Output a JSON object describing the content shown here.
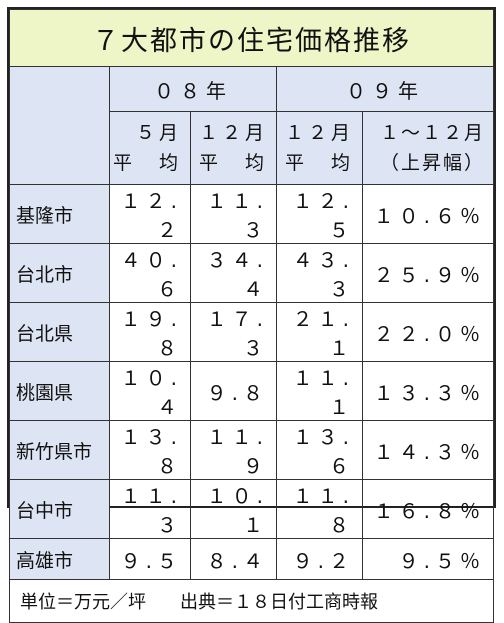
{
  "title": "７大都市の住宅価格推移",
  "year_headers": [
    "０８年",
    "０９年"
  ],
  "sub_headers": [
    {
      "line1": "５月",
      "line2": "平　均"
    },
    {
      "line1": "１２月",
      "line2": "平　均"
    },
    {
      "line1": "１２月",
      "line2": "平　均"
    },
    {
      "line1": "１〜１２月",
      "line2": "（上昇幅）"
    }
  ],
  "rows": [
    {
      "city": "基隆市",
      "v": [
        "１２.２",
        "１１.３",
        "１２.５",
        "１０.６％"
      ]
    },
    {
      "city": "台北市",
      "v": [
        "４０.６",
        "３４.４",
        "４３.３",
        "２５.９％"
      ]
    },
    {
      "city": "台北県",
      "v": [
        "１９.８",
        "１７.３",
        "２１.１",
        "２２.０％"
      ]
    },
    {
      "city": "桃園県",
      "v": [
        "１０.４",
        "９.８",
        "１１.１",
        "１３.３％"
      ]
    },
    {
      "city": "新竹県市",
      "v": [
        "１３.８",
        "１１.９",
        "１３.６",
        "１４.３％"
      ]
    },
    {
      "city": "台中市",
      "v": [
        "１１.３",
        "１０.１",
        "１１.８",
        "１６.８％"
      ]
    },
    {
      "city": "高雄市",
      "v": [
        "９.５",
        "８.４",
        "９.２",
        "９.５％"
      ]
    }
  ],
  "footer": {
    "unit": "単位＝万元／坪",
    "source": "出典＝１８日付工商時報"
  }
}
